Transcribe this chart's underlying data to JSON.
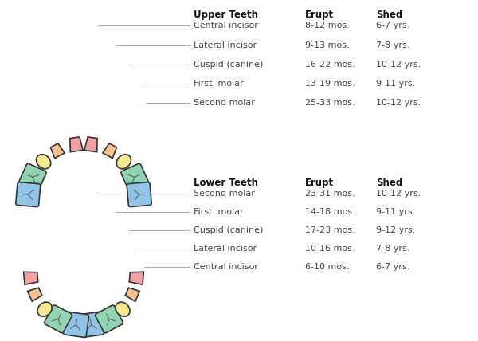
{
  "background_color": "#ffffff",
  "upper_teeth": {
    "header": [
      "Upper Teeth",
      "Erupt",
      "Shed"
    ],
    "rows": [
      [
        "Central incisor",
        "8-12 mos.",
        "6-7 yrs."
      ],
      [
        "Lateral incisor",
        "9-13 mos.",
        "7-8 yrs."
      ],
      [
        "Cuspid (canine)",
        "16-22 mos.",
        "10-12 yrs."
      ],
      [
        "First  molar",
        "13-19 mos.",
        "9-11 yrs."
      ],
      [
        "Second molar",
        "25-33 mos.",
        "10-12 yrs."
      ]
    ]
  },
  "lower_teeth": {
    "header": [
      "Lower Teeth",
      "Erupt",
      "Shed"
    ],
    "rows": [
      [
        "Second molar",
        "23-31 mos.",
        "10-12 yrs."
      ],
      [
        "First  molar",
        "14-18 mos.",
        "9-11 yrs."
      ],
      [
        "Cuspid (canine)",
        "17-23 mos.",
        "9-12 yrs."
      ],
      [
        "Lateral incisor",
        "10-16 mos.",
        "7-8 yrs."
      ],
      [
        "Central incisor",
        "6-10 mos.",
        "6-7 yrs."
      ]
    ]
  },
  "colors": {
    "central_incisor": "#f4a0a0",
    "lateral_incisor": "#f7c090",
    "canine": "#f5e890",
    "first_molar": "#90d4b4",
    "second_molar": "#90c4e8",
    "outline": "#333333",
    "line_color": "#aaaaaa",
    "text_color": "#444444",
    "header_color": "#111111"
  }
}
